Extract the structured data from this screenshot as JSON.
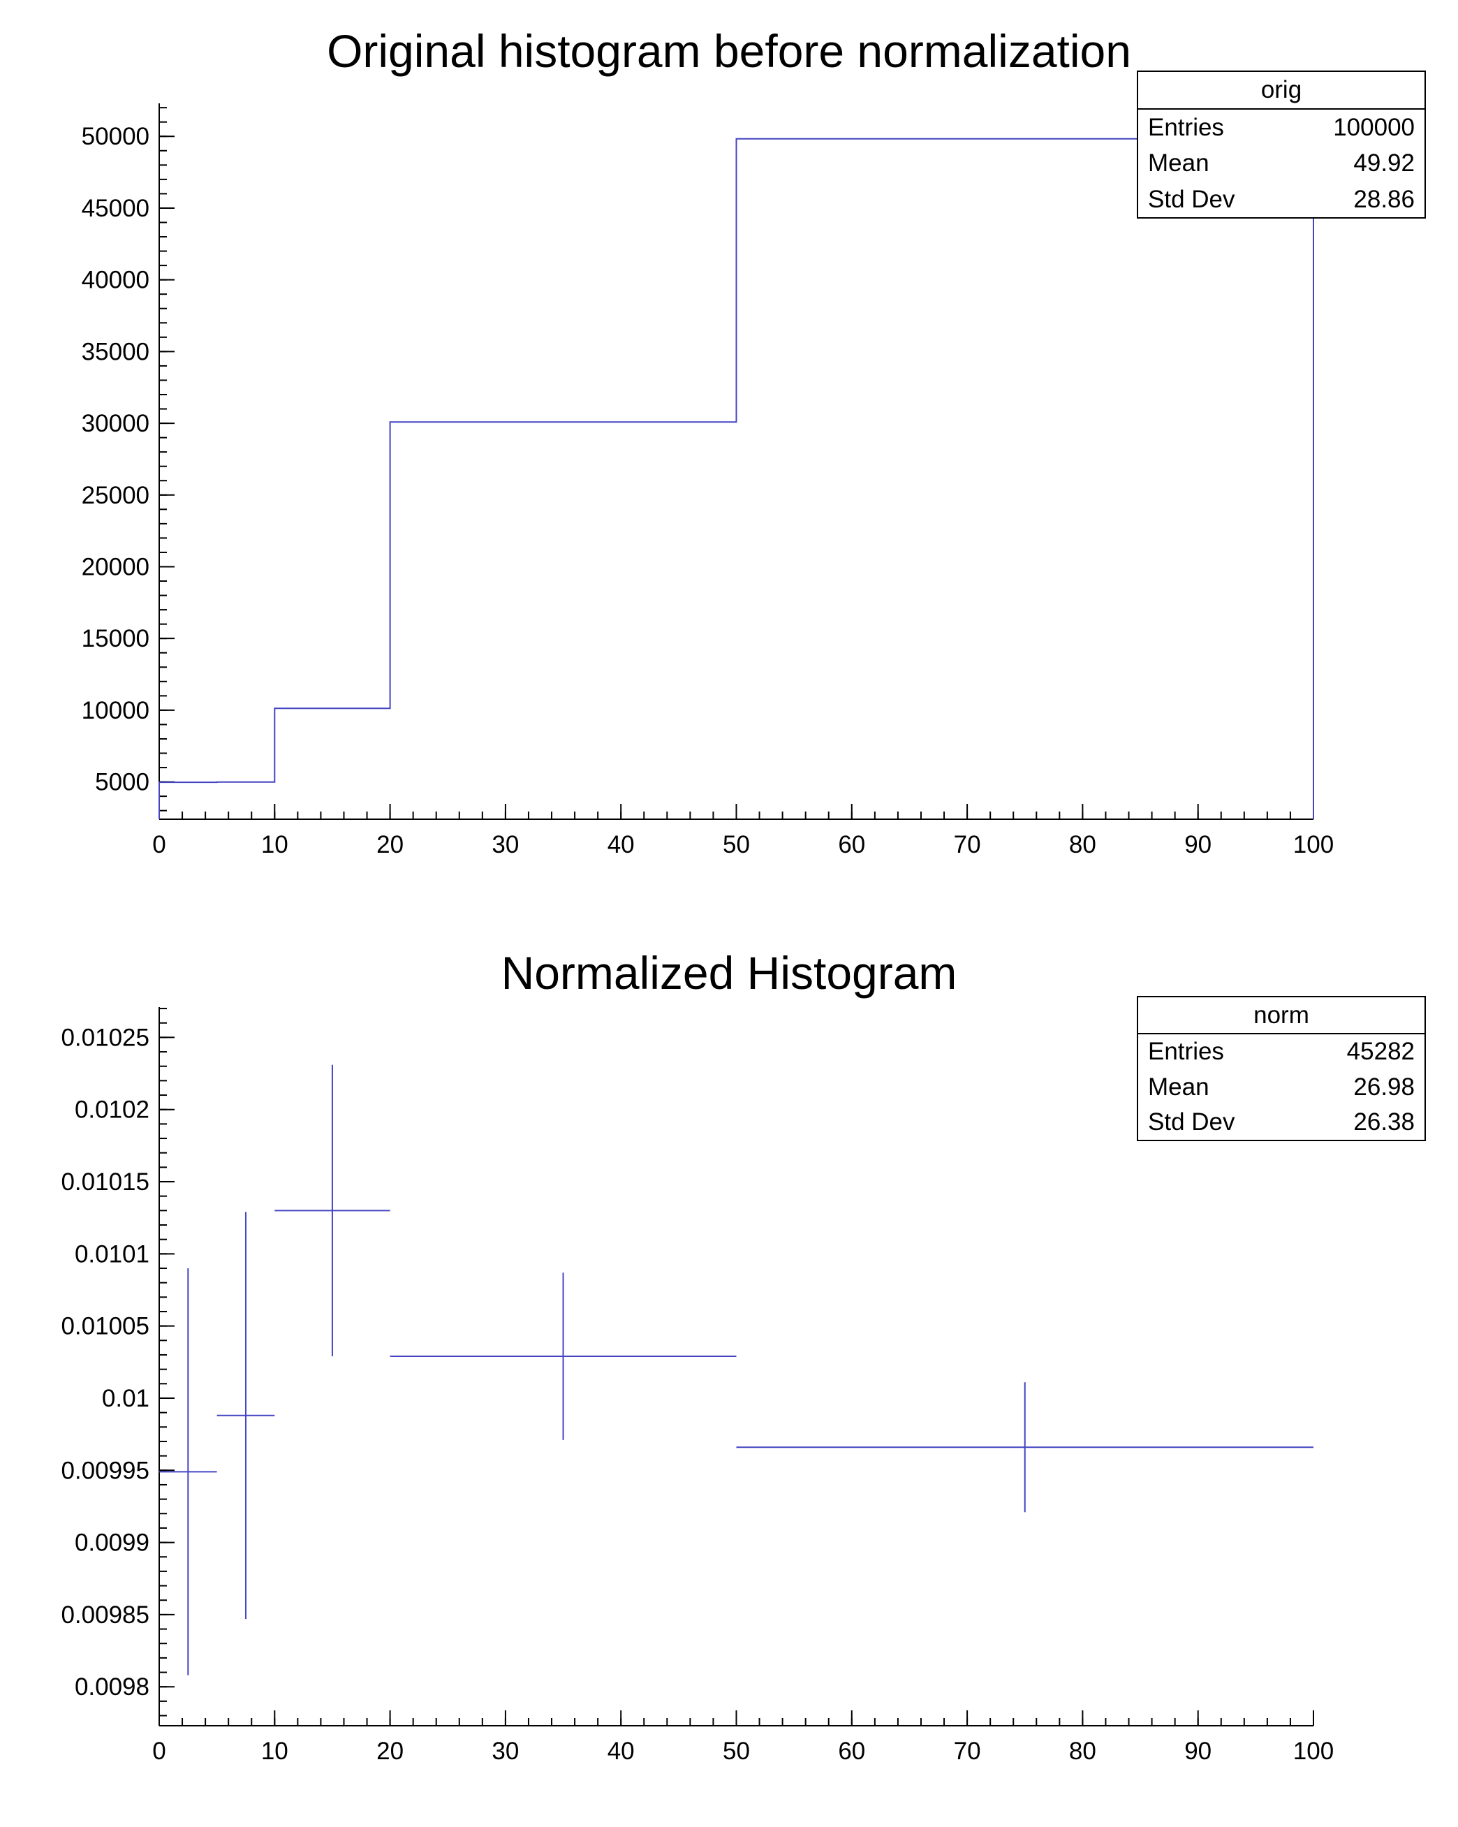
{
  "page": {
    "background": "#ffffff"
  },
  "labels": {
    "entries": "Entries",
    "mean": "Mean",
    "std_dev": "Std Dev"
  },
  "chart_data": [
    {
      "type": "histogram-step",
      "title": "Original histogram before normalization",
      "stats_title": "orig",
      "stats": {
        "entries": "100000",
        "mean": "49.92",
        "std_dev": "28.86"
      },
      "line_color": "#4444c4",
      "axis_color": "#000000",
      "bin_edges": [
        0,
        5,
        10,
        20,
        50,
        100
      ],
      "values": [
        4975,
        4994,
        10130,
        30090,
        49830
      ],
      "xlim": [
        0,
        100
      ],
      "ylim": [
        2400,
        52300
      ],
      "x_ticks": [
        0,
        10,
        20,
        30,
        40,
        50,
        60,
        70,
        80,
        90,
        100
      ],
      "x_tick_labels": [
        "0",
        "10",
        "20",
        "30",
        "40",
        "50",
        "60",
        "70",
        "80",
        "90",
        "100"
      ],
      "x_minor_step": 2,
      "y_ticks": [
        5000,
        10000,
        15000,
        20000,
        25000,
        30000,
        35000,
        40000,
        45000,
        50000
      ],
      "y_tick_labels": [
        "5000",
        "10000",
        "15000",
        "20000",
        "25000",
        "30000",
        "35000",
        "40000",
        "45000",
        "50000"
      ],
      "y_minor_step": 1000,
      "xlabel": "",
      "ylabel": "",
      "grid": false,
      "legend": "stats-box-top-right"
    },
    {
      "type": "histogram-errorbars",
      "title": "Normalized Histogram",
      "stats_title": "norm",
      "stats": {
        "entries": "45282",
        "mean": "26.98",
        "std_dev": "26.38"
      },
      "line_color": "#4444c4",
      "axis_color": "#000000",
      "bin_edges": [
        0,
        5,
        10,
        20,
        50,
        100
      ],
      "values": [
        0.009949,
        0.009988,
        0.01013,
        0.010029,
        0.009966
      ],
      "errors": [
        0.000141,
        0.000141,
        0.000101,
        5.8e-05,
        4.5e-05
      ],
      "xlim": [
        0,
        100
      ],
      "ylim": [
        0.009773,
        0.010271
      ],
      "x_ticks": [
        0,
        10,
        20,
        30,
        40,
        50,
        60,
        70,
        80,
        90,
        100
      ],
      "x_tick_labels": [
        "0",
        "10",
        "20",
        "30",
        "40",
        "50",
        "60",
        "70",
        "80",
        "90",
        "100"
      ],
      "x_minor_step": 2,
      "y_ticks": [
        0.0098,
        0.00985,
        0.0099,
        0.00995,
        0.01,
        0.01005,
        0.0101,
        0.01015,
        0.0102,
        0.01025
      ],
      "y_tick_labels": [
        "0.0098",
        "0.00985",
        "0.0099",
        "0.00995",
        "0.01",
        "0.01005",
        "0.0101",
        "0.01015",
        "0.0102",
        "0.01025"
      ],
      "y_minor_step": 1e-05,
      "xlabel": "",
      "ylabel": "",
      "grid": false,
      "legend": "stats-box-top-right"
    }
  ]
}
